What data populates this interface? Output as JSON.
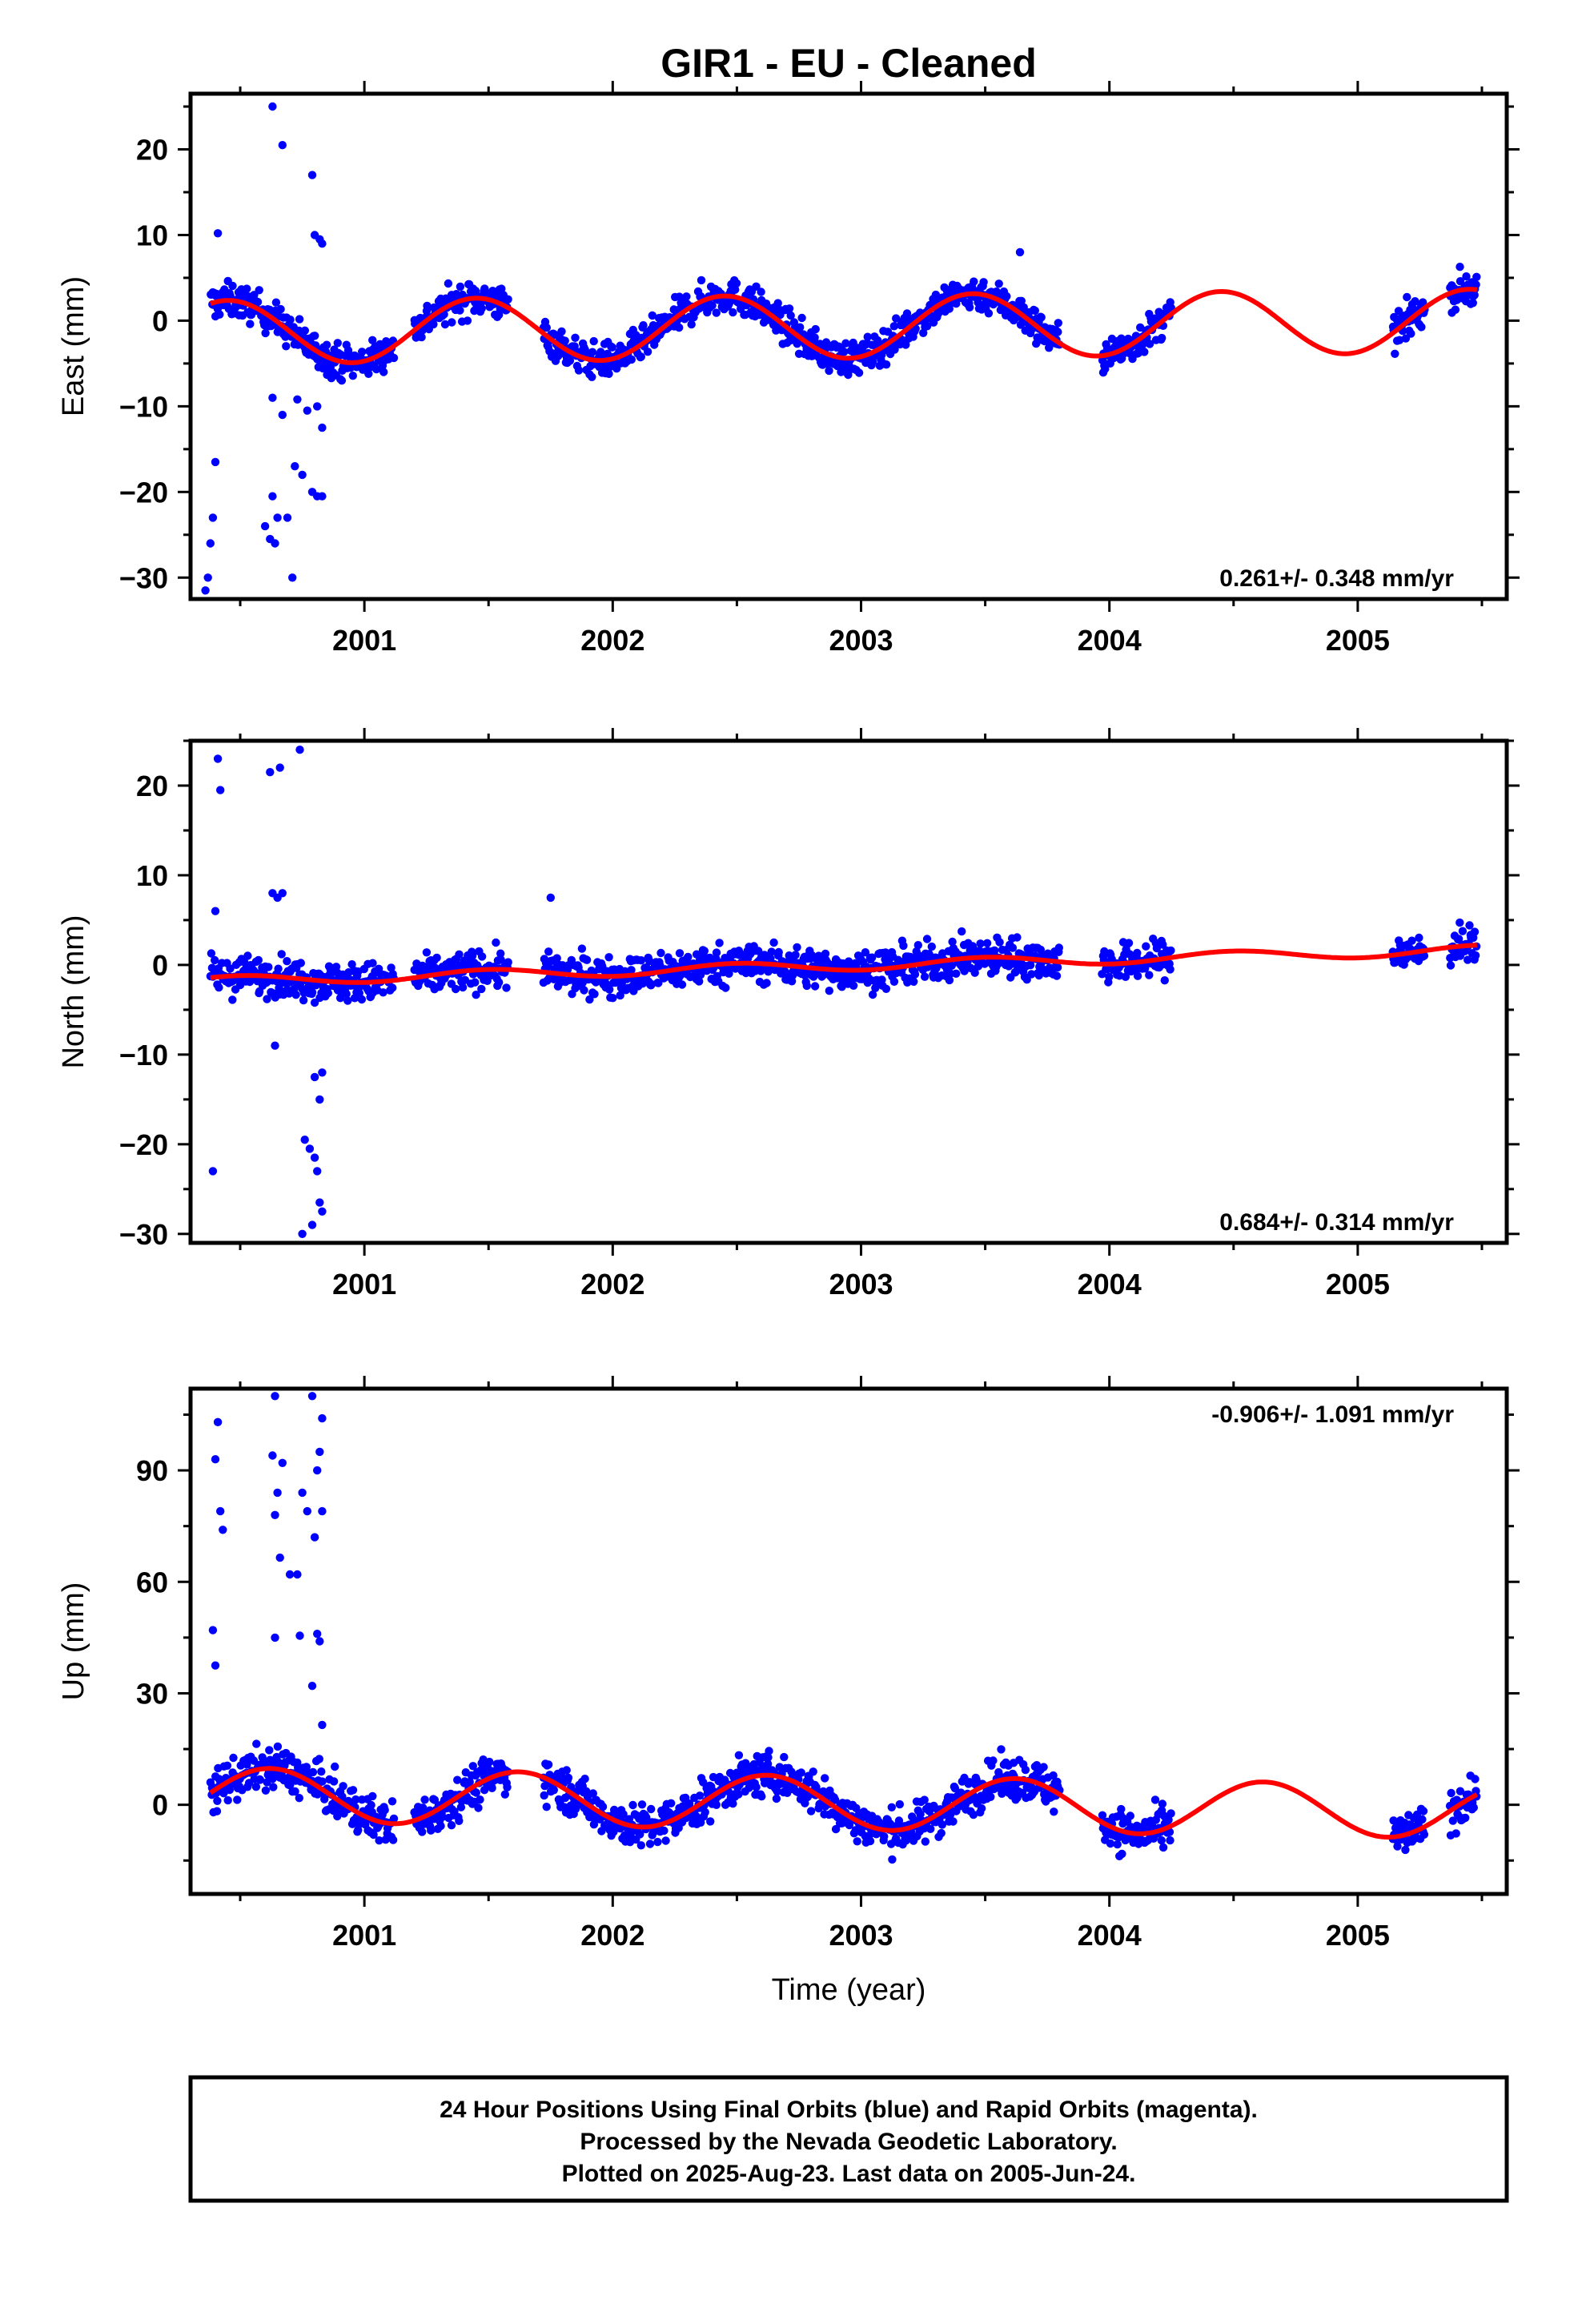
{
  "title": "GIR1  - EU - Cleaned",
  "colors": {
    "final_orbits": "#0000ff",
    "model": "#ff0000",
    "frame": "#000000"
  },
  "footer": {
    "line1": "24 Hour Positions Using Final Orbits (blue) and Rapid Orbits (magenta).",
    "line2": "Processed by the Nevada Geodetic Laboratory.",
    "line3": "Plotted on 2025-Aug-23. Last data on 2005-Jun-24."
  },
  "chart_data": [
    {
      "type": "scatter",
      "panel": "east",
      "ylabel": "East (mm)",
      "xlabel": "",
      "xlim": [
        2000.3,
        2005.6
      ],
      "ylim": [
        -32.5,
        26.5
      ],
      "xticks": [
        2001,
        2002,
        2003,
        2004,
        2005
      ],
      "xtick_labels": [
        "2001",
        "2002",
        "2003",
        "2004",
        "2005"
      ],
      "yticks": [
        -30,
        -20,
        -10,
        0,
        10,
        20
      ],
      "ytick_labels": [
        "−30",
        "−20",
        "−10",
        "0",
        "10",
        "20"
      ],
      "rate_label": "0.261+/- 0.348 mm/yr",
      "rate_position": "bottom-right",
      "model": {
        "rate": 0.261,
        "amplitude": 3.7,
        "period_yr": 1.0,
        "phase_peak": 2001.45,
        "t0": 2002.9,
        "offset": -0.7
      },
      "data_segments": [
        [
          2000.38,
          2000.88
        ],
        [
          2000.88,
          2001.12
        ],
        [
          2001.2,
          2001.58
        ],
        [
          2001.72,
          2002.58
        ],
        [
          2002.58,
          2003.8
        ],
        [
          2003.97,
          2004.25
        ],
        [
          2005.14,
          2005.27
        ],
        [
          2005.37,
          2005.48
        ]
      ],
      "noise_mm": 1.4,
      "outliers": [
        [
          2000.41,
          10.2
        ],
        [
          2000.4,
          -16.5
        ],
        [
          2000.39,
          -23.0
        ],
        [
          2000.38,
          -26.0
        ],
        [
          2000.37,
          -30.0
        ],
        [
          2000.36,
          -31.5
        ],
        [
          2000.63,
          25.0
        ],
        [
          2000.67,
          20.5
        ],
        [
          2000.79,
          17.0
        ],
        [
          2000.8,
          10.0
        ],
        [
          2000.82,
          9.5
        ],
        [
          2000.83,
          9.0
        ],
        [
          2000.63,
          -9.0
        ],
        [
          2000.67,
          -11.0
        ],
        [
          2000.73,
          -9.2
        ],
        [
          2000.77,
          -10.5
        ],
        [
          2000.81,
          -10.0
        ],
        [
          2000.83,
          -12.5
        ],
        [
          2000.63,
          -20.5
        ],
        [
          2000.65,
          -23.0
        ],
        [
          2000.6,
          -24.0
        ],
        [
          2000.62,
          -25.5
        ],
        [
          2000.64,
          -26.0
        ],
        [
          2000.69,
          -23.0
        ],
        [
          2000.72,
          -17.0
        ],
        [
          2000.75,
          -18.0
        ],
        [
          2000.79,
          -20.0
        ],
        [
          2000.81,
          -20.5
        ],
        [
          2000.83,
          -20.5
        ],
        [
          2000.71,
          -30.0
        ],
        [
          2003.64,
          8.0
        ]
      ]
    },
    {
      "type": "scatter",
      "panel": "north",
      "ylabel": "North (mm)",
      "xlabel": "",
      "xlim": [
        2000.3,
        2005.6
      ],
      "ylim": [
        -31,
        25
      ],
      "xticks": [
        2001,
        2002,
        2003,
        2004,
        2005
      ],
      "xtick_labels": [
        "2001",
        "2002",
        "2003",
        "2004",
        "2005"
      ],
      "yticks": [
        -30,
        -20,
        -10,
        0,
        10,
        20
      ],
      "ytick_labels": [
        "−30",
        "−20",
        "−10",
        "0",
        "10",
        "20"
      ],
      "rate_label": "0.684+/- 0.314 mm/yr",
      "rate_position": "bottom-right",
      "model": {
        "rate": 0.684,
        "amplitude": 0.55,
        "period_yr": 1.0,
        "phase_peak": 2001.5,
        "t0": 2002.9,
        "offset": -0.1
      },
      "data_segments": [
        [
          2000.38,
          2000.88
        ],
        [
          2000.88,
          2001.12
        ],
        [
          2001.2,
          2001.58
        ],
        [
          2001.72,
          2002.58
        ],
        [
          2002.58,
          2003.8
        ],
        [
          2003.97,
          2004.25
        ],
        [
          2005.14,
          2005.27
        ],
        [
          2005.37,
          2005.48
        ]
      ],
      "noise_mm": 1.5,
      "outliers": [
        [
          2000.41,
          23.0
        ],
        [
          2000.42,
          19.5
        ],
        [
          2000.62,
          21.5
        ],
        [
          2000.66,
          22.0
        ],
        [
          2000.74,
          24.0
        ],
        [
          2000.39,
          -23.0
        ],
        [
          2000.4,
          6.0
        ],
        [
          2000.63,
          8.0
        ],
        [
          2000.65,
          7.5
        ],
        [
          2000.67,
          8.0
        ],
        [
          2000.64,
          -9.0
        ],
        [
          2000.8,
          -12.5
        ],
        [
          2000.82,
          -15.0
        ],
        [
          2000.83,
          -12.0
        ],
        [
          2000.76,
          -19.5
        ],
        [
          2000.78,
          -20.5
        ],
        [
          2000.8,
          -21.5
        ],
        [
          2000.81,
          -23.0
        ],
        [
          2000.82,
          -26.5
        ],
        [
          2000.83,
          -27.5
        ],
        [
          2000.79,
          -29.0
        ],
        [
          2000.75,
          -30.0
        ],
        [
          2001.75,
          7.5
        ]
      ]
    },
    {
      "type": "scatter",
      "panel": "up",
      "ylabel": "Up (mm)",
      "xlabel": "Time (year)",
      "xlim": [
        2000.3,
        2005.6
      ],
      "ylim": [
        -24,
        112
      ],
      "xticks": [
        2001,
        2002,
        2003,
        2004,
        2005
      ],
      "xtick_labels": [
        "2001",
        "2002",
        "2003",
        "2004",
        "2005"
      ],
      "yticks": [
        0,
        30,
        60,
        90
      ],
      "ytick_labels": [
        "0",
        "30",
        "60",
        "90"
      ],
      "rate_label": "-0.906+/- 1.091 mm/yr",
      "rate_position": "top-right",
      "model": {
        "rate": -0.906,
        "amplitude": 7.2,
        "period_yr": 1.0,
        "phase_peak": 2001.62,
        "t0": 2002.9,
        "offset": 0.5
      },
      "data_segments": [
        [
          2000.38,
          2000.88
        ],
        [
          2000.88,
          2001.12
        ],
        [
          2001.2,
          2001.58
        ],
        [
          2001.72,
          2002.58
        ],
        [
          2002.58,
          2003.8
        ],
        [
          2003.97,
          2004.25
        ],
        [
          2005.14,
          2005.27
        ],
        [
          2005.37,
          2005.48
        ]
      ],
      "noise_mm": 4.0,
      "outliers": [
        [
          2000.41,
          103.0
        ],
        [
          2000.4,
          93.0
        ],
        [
          2000.42,
          79.0
        ],
        [
          2000.43,
          74.0
        ],
        [
          2000.39,
          47.0
        ],
        [
          2000.4,
          37.5
        ],
        [
          2000.64,
          110.0
        ],
        [
          2000.63,
          94.0
        ],
        [
          2000.67,
          92.0
        ],
        [
          2000.65,
          84.0
        ],
        [
          2000.64,
          78.0
        ],
        [
          2000.66,
          66.5
        ],
        [
          2000.7,
          62.0
        ],
        [
          2000.73,
          62.0
        ],
        [
          2000.79,
          110.0
        ],
        [
          2000.83,
          104.0
        ],
        [
          2000.82,
          95.0
        ],
        [
          2000.81,
          90.0
        ],
        [
          2000.75,
          84.0
        ],
        [
          2000.77,
          79.0
        ],
        [
          2000.83,
          79.0
        ],
        [
          2000.8,
          72.0
        ],
        [
          2000.64,
          45.0
        ],
        [
          2000.74,
          45.5
        ],
        [
          2000.81,
          46.0
        ],
        [
          2000.82,
          44.0
        ],
        [
          2000.79,
          32.0
        ],
        [
          2000.83,
          21.5
        ]
      ]
    }
  ]
}
